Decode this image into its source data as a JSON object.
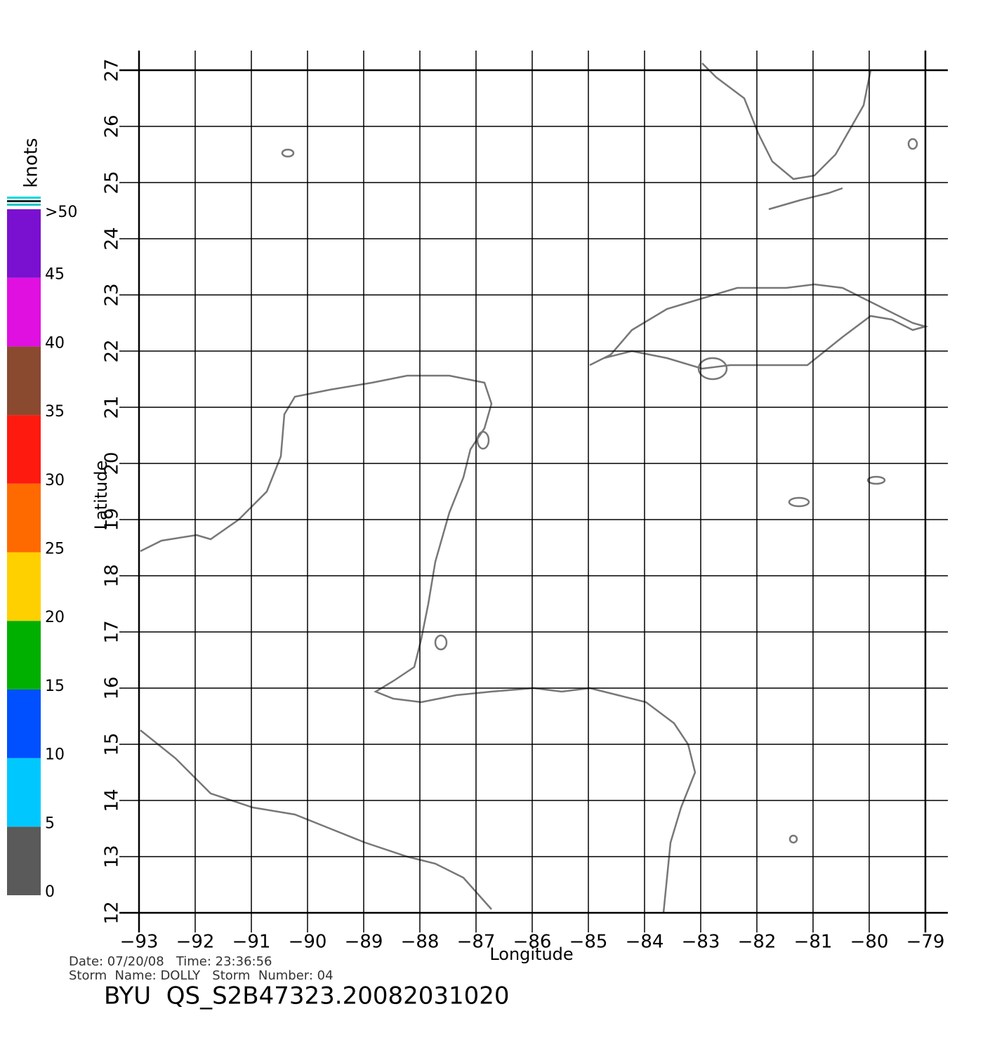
{
  "map": {
    "type": "map",
    "xlabel": "Longitude",
    "ylabel": "Latitude",
    "xlim": [
      -93,
      -79
    ],
    "ylim": [
      12,
      27
    ],
    "xticks": [
      {
        "value": -93,
        "label": "−93"
      },
      {
        "value": -92,
        "label": "−92"
      },
      {
        "value": -91,
        "label": "−91"
      },
      {
        "value": -90,
        "label": "−90"
      },
      {
        "value": -89,
        "label": "−89"
      },
      {
        "value": -88,
        "label": "−88"
      },
      {
        "value": -87,
        "label": "−87"
      },
      {
        "value": -86,
        "label": "−86"
      },
      {
        "value": -85,
        "label": "−85"
      },
      {
        "value": -84,
        "label": "−84"
      },
      {
        "value": -83,
        "label": "−83"
      },
      {
        "value": -82,
        "label": "−82"
      },
      {
        "value": -81,
        "label": "−81"
      },
      {
        "value": -80,
        "label": "−80"
      },
      {
        "value": -79,
        "label": "−79"
      }
    ],
    "yticks": [
      12,
      13,
      14,
      15,
      16,
      17,
      18,
      19,
      20,
      21,
      22,
      23,
      24,
      25,
      26,
      27
    ],
    "grid": true
  },
  "colorbar": {
    "label": "knots",
    "lim": [
      0,
      50
    ],
    "ticks": [
      0,
      5,
      10,
      15,
      20,
      25,
      30,
      35,
      40,
      45,
      {
        "value": 50,
        "label": ">50"
      }
    ],
    "colors": [
      "#5a5a5a",
      "#00c8ff",
      "#0050ff",
      "#00b000",
      "#ffd000",
      "#ff6a00",
      "#ff1a10",
      "#8a4a30",
      "#e010e0",
      "#7a10d0"
    ]
  },
  "footer": {
    "date_time": "Date: 07/20/08   Time: 23:36:56",
    "storm": "Storm  Name: DOLLY   Storm  Number: 04",
    "product": "BYU  QS_S2B47323.20082031020"
  }
}
